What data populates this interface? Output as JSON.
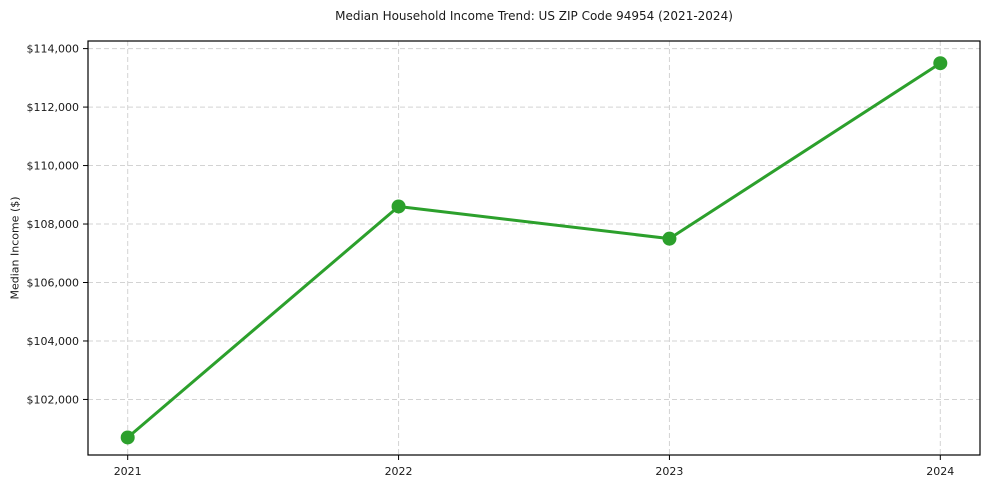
{
  "chart_data": {
    "type": "line",
    "title": "Median Household Income Trend: US ZIP Code 94954 (2021-2024)",
    "ylabel": "Median Income ($)",
    "xlabel": "",
    "categories": [
      "2021",
      "2022",
      "2023",
      "2024"
    ],
    "series": [
      {
        "name": "Median Household Income",
        "values": [
          100700,
          108600,
          107500,
          113500
        ]
      }
    ],
    "ylim": [
      100100,
      114260
    ],
    "yticks": [
      102000,
      104000,
      106000,
      108000,
      110000,
      112000,
      114000
    ],
    "ytick_labels": [
      "$102,000",
      "$104,000",
      "$106,000",
      "$108,000",
      "$110,000",
      "$112,000",
      "$114,000"
    ],
    "grid": true,
    "grid_style": "dashed",
    "legend_position": "none",
    "marker": "circle",
    "x_margin_frac": 0.0445,
    "colors": {
      "line": "#2ca02c",
      "grid": "#d3d3d3",
      "text": "#1a1a1a",
      "spine": "#000000",
      "background": "#ffffff"
    }
  }
}
